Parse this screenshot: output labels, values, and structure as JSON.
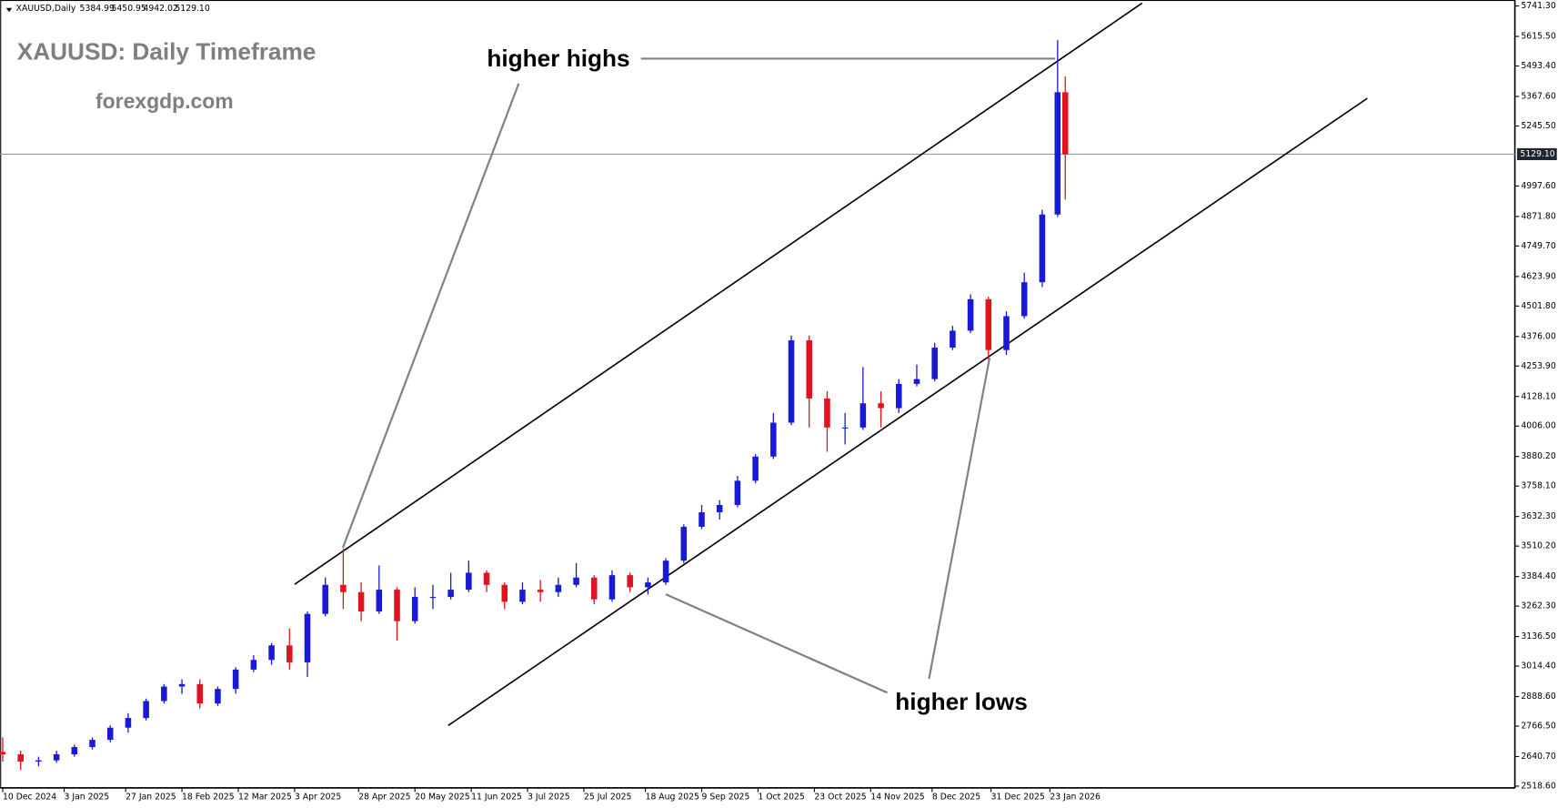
{
  "header": {
    "symbol": "XAUUSD,Daily",
    "open": "5384.99",
    "high": "5450.95",
    "low": "4942.02",
    "close": "5129.10"
  },
  "chart_data": {
    "type": "candlestick",
    "title": "XAUUSD: Daily Timeframe",
    "subtitle": "forexgdp.com",
    "annotations": [
      "higher highs",
      "higher lows"
    ],
    "up_color": "#1a1ad6",
    "down_color": "#e0141e",
    "x": [
      "10 Dec 2024",
      "17 Dec 2024",
      "24 Dec 2024",
      "31 Dec 2024",
      "7 Jan 2025",
      "14 Jan 2025",
      "21 Jan 2025",
      "28 Jan 2025",
      "4 Feb 2025",
      "11 Feb 2025",
      "18 Feb 2025",
      "25 Feb 2025",
      "4 Mar 2025",
      "11 Mar 2025",
      "18 Mar 2025",
      "25 Mar 2025",
      "1 Apr 2025",
      "8 Apr 2025",
      "15 Apr 2025",
      "22 Apr 2025",
      "29 Apr 2025",
      "6 May 2025",
      "13 May 2025",
      "20 May 2025",
      "27 May 2025",
      "3 Jun 2025",
      "10 Jun 2025",
      "17 Jun 2025",
      "24 Jun 2025",
      "1 Jul 2025",
      "8 Jul 2025",
      "15 Jul 2025",
      "22 Jul 2025",
      "29 Jul 2025",
      "5 Aug 2025",
      "12 Aug 2025",
      "19 Aug 2025",
      "26 Aug 2025",
      "2 Sep 2025",
      "9 Sep 2025",
      "16 Sep 2025",
      "23 Sep 2025",
      "30 Sep 2025",
      "7 Oct 2025",
      "14 Oct 2025",
      "21 Oct 2025",
      "28 Oct 2025",
      "4 Nov 2025",
      "11 Nov 2025",
      "18 Nov 2025",
      "25 Nov 2025",
      "2 Dec 2025",
      "9 Dec 2025",
      "16 Dec 2025",
      "23 Dec 2025",
      "30 Dec 2025",
      "6 Jan 2026",
      "13 Jan 2026",
      "20 Jan 2026",
      "26 Jan 2026",
      "29 Jan 2026"
    ],
    "open": [
      2660,
      2650,
      2620,
      2625,
      2650,
      2680,
      2710,
      2760,
      2800,
      2870,
      2930,
      2940,
      2860,
      2920,
      3000,
      3040,
      3100,
      3030,
      3230,
      3350,
      3320,
      3240,
      3330,
      3200,
      3300,
      3300,
      3330,
      3400,
      3350,
      3280,
      3330,
      3320,
      3350,
      3380,
      3290,
      3390,
      3340,
      3360,
      3450,
      3590,
      3650,
      3680,
      3780,
      3880,
      4020,
      4360,
      4120,
      4000,
      4000,
      4100,
      4080,
      4180,
      4200,
      4330,
      4400,
      4530,
      4320,
      4460,
      4600,
      4880,
      5384.99
    ],
    "high": [
      2720,
      2665,
      2640,
      2665,
      2690,
      2720,
      2770,
      2820,
      2880,
      2940,
      2960,
      2960,
      2930,
      3010,
      3060,
      3110,
      3170,
      3240,
      3380,
      3500,
      3360,
      3430,
      3340,
      3340,
      3350,
      3400,
      3450,
      3410,
      3360,
      3360,
      3370,
      3380,
      3440,
      3390,
      3410,
      3400,
      3380,
      3460,
      3600,
      3680,
      3700,
      3800,
      3890,
      4060,
      4380,
      4380,
      4150,
      4060,
      4250,
      4150,
      4200,
      4260,
      4350,
      4420,
      4550,
      4540,
      4480,
      4640,
      4900,
      5600,
      5450.95
    ],
    "low": [
      2620,
      2585,
      2600,
      2615,
      2640,
      2670,
      2700,
      2740,
      2790,
      2860,
      2900,
      2840,
      2850,
      2900,
      2990,
      3020,
      3000,
      2970,
      3220,
      3250,
      3200,
      3230,
      3120,
      3190,
      3250,
      3290,
      3320,
      3320,
      3250,
      3270,
      3280,
      3300,
      3340,
      3270,
      3280,
      3320,
      3310,
      3350,
      3440,
      3580,
      3620,
      3670,
      3770,
      3870,
      4010,
      4000,
      3900,
      3930,
      3990,
      4000,
      4060,
      4170,
      4190,
      4320,
      4390,
      4280,
      4300,
      4450,
      4580,
      4870,
      4942.02
    ],
    "close": [
      2650,
      2620,
      2625,
      2650,
      2680,
      2710,
      2760,
      2800,
      2870,
      2930,
      2940,
      2860,
      2920,
      3000,
      3040,
      3100,
      3030,
      3230,
      3350,
      3320,
      3240,
      3330,
      3200,
      3300,
      3300,
      3330,
      3400,
      3350,
      3280,
      3330,
      3320,
      3350,
      3380,
      3290,
      3390,
      3340,
      3360,
      3450,
      3590,
      3650,
      3680,
      3780,
      3880,
      4020,
      4360,
      4120,
      4000,
      4000,
      4100,
      4080,
      4180,
      4200,
      4330,
      4400,
      4530,
      4320,
      4460,
      4600,
      4880,
      5384.99,
      5129.1
    ],
    "xlim": [
      "9 Dec 2024",
      "14 Jul 2026"
    ],
    "xticks": [
      "10 Dec 2024",
      "3 Jan 2025",
      "27 Jan 2025",
      "18 Feb 2025",
      "12 Mar 2025",
      "3 Apr 2025",
      "28 Apr 2025",
      "20 May 2025",
      "11 Jun 2025",
      "3 Jul 2025",
      "25 Jul 2025",
      "18 Aug 2025",
      "9 Sep 2025",
      "1 Oct 2025",
      "23 Oct 2025",
      "14 Nov 2025",
      "8 Dec 2025",
      "31 Dec 2025",
      "23 Jan 2026"
    ],
    "ylim": [
      2518.6,
      5741.3
    ],
    "yticks": [
      {
        "value": 5741.3,
        "label": "5741.30"
      },
      {
        "value": 5615.5,
        "label": "5615.50"
      },
      {
        "value": 5493.4,
        "label": "5493.40"
      },
      {
        "value": 5367.6,
        "label": "5367.60"
      },
      {
        "value": 5245.5,
        "label": "5245.50"
      },
      {
        "value": 4997.6,
        "label": "4997.60"
      },
      {
        "value": 4871.8,
        "label": "4871.80"
      },
      {
        "value": 4749.7,
        "label": "4749.70"
      },
      {
        "value": 4623.9,
        "label": "4623.90"
      },
      {
        "value": 4501.8,
        "label": "4501.80"
      },
      {
        "value": 4376,
        "label": "4376.00"
      },
      {
        "value": 4253.9,
        "label": "4253.90"
      },
      {
        "value": 4128.1,
        "label": "4128.10"
      },
      {
        "value": 4006,
        "label": "4006.00"
      },
      {
        "value": 3880.2,
        "label": "3880.20"
      },
      {
        "value": 3758.1,
        "label": "3758.10"
      },
      {
        "value": 3632.3,
        "label": "3632.30"
      },
      {
        "value": 3510.2,
        "label": "3510.20"
      },
      {
        "value": 3384.4,
        "label": "3384.40"
      },
      {
        "value": 3262.3,
        "label": "3262.30"
      },
      {
        "value": 3136.5,
        "label": "3136.50"
      },
      {
        "value": 3014.4,
        "label": "3014.40"
      },
      {
        "value": 2888.6,
        "label": "2888.60"
      },
      {
        "value": 2766.5,
        "label": "2766.50"
      },
      {
        "value": 2640.7,
        "label": "2640.70"
      },
      {
        "value": 2518.6,
        "label": "2518.60"
      }
    ],
    "price_line": {
      "value": 5129.1,
      "label": "5129.10"
    },
    "trendlines": [
      {
        "x": [
          "3 Apr 2025",
          "28 Feb 2026"
        ],
        "values": [
          3352,
          5753
        ]
      },
      {
        "x": [
          "2 Jun 2025",
          "27 May 2026"
        ],
        "values": [
          2769,
          5360
        ]
      }
    ]
  }
}
